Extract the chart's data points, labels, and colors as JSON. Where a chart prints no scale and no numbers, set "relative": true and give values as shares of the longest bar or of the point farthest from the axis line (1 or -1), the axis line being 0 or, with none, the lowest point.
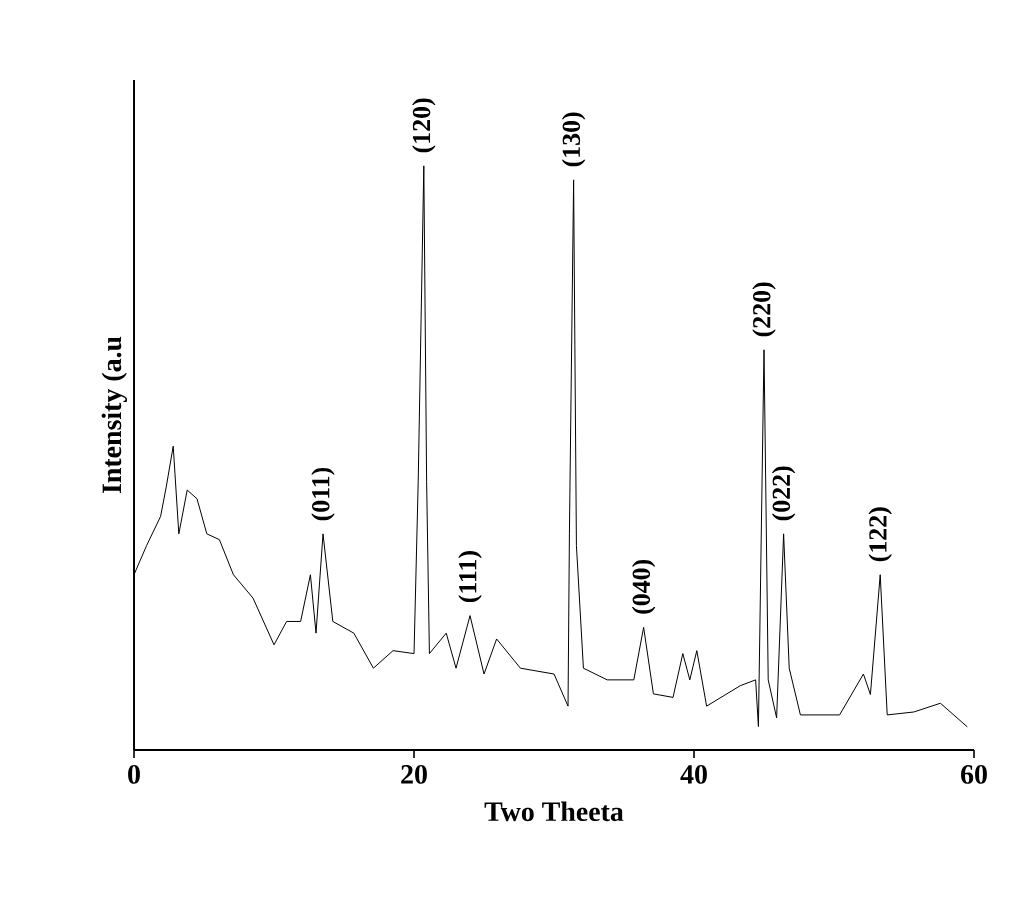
{
  "chart_data": {
    "type": "line",
    "relative": true,
    "xlabel": "Two Theeta",
    "ylabel": "Intensity (a.u",
    "xlim": [
      0,
      60
    ],
    "xticks": [
      0,
      20,
      40,
      60
    ],
    "grid": false,
    "marker": "none",
    "line_style": "solid",
    "x": [
      0,
      0.9,
      1.9,
      2.3,
      2.8,
      3.2,
      3.8,
      4.5,
      5.2,
      6.1,
      7.1,
      8.5,
      10,
      10.9,
      11.9,
      12.6,
      13.0,
      13.5,
      14.2,
      15.7,
      17.1,
      18.5,
      20.0,
      20.3,
      20.7,
      20.9,
      21.1,
      22.3,
      23.0,
      24.0,
      25.0,
      25.9,
      27.6,
      30,
      31.0,
      31.1,
      31.4,
      31.6,
      32.1,
      33.8,
      35.7,
      36.4,
      37.1,
      38.5,
      39.2,
      39.7,
      40.2,
      40.9,
      43.3,
      44.4,
      44.6,
      45.0,
      45.3,
      45.9,
      46.4,
      46.8,
      47.6,
      50.4,
      52.1,
      52.6,
      53.3,
      53.8,
      55.7,
      57.6,
      59.5
    ],
    "series": [
      {
        "color": "#000000",
        "values": [
          0.3,
          0.35,
          0.4,
          0.45,
          0.52,
          0.37,
          0.445,
          0.43,
          0.37,
          0.36,
          0.3,
          0.26,
          0.18,
          0.22,
          0.22,
          0.3,
          0.2,
          0.37,
          0.22,
          0.2,
          0.14,
          0.17,
          0.165,
          0.46,
          1.0,
          0.46,
          0.165,
          0.2,
          0.14,
          0.23,
          0.13,
          0.19,
          0.14,
          0.13,
          0.075,
          0.37,
          0.976,
          0.35,
          0.14,
          0.12,
          0.12,
          0.21,
          0.096,
          0.09,
          0.165,
          0.12,
          0.17,
          0.075,
          0.11,
          0.12,
          0.04,
          0.685,
          0.12,
          0.055,
          0.37,
          0.14,
          0.06,
          0.06,
          0.13,
          0.095,
          0.3,
          0.06,
          0.065,
          0.08,
          0.04
        ]
      }
    ],
    "annotations": [
      {
        "text": "(011)",
        "x": 13.5,
        "y": 0.37
      },
      {
        "text": "(120)",
        "x": 20.7,
        "y": 1.0
      },
      {
        "text": "(111)",
        "x": 24.0,
        "y": 0.23
      },
      {
        "text": "(130)",
        "x": 31.4,
        "y": 0.976
      },
      {
        "text": "(040)",
        "x": 36.4,
        "y": 0.21
      },
      {
        "text": "(220)",
        "x": 45.0,
        "y": 0.685
      },
      {
        "text": "(022)",
        "x": 46.4,
        "y": 0.37
      },
      {
        "text": "(122)",
        "x": 53.3,
        "y": 0.3
      }
    ]
  }
}
